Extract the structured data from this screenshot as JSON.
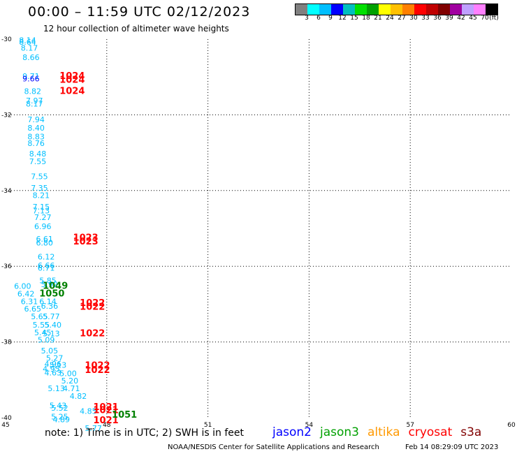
{
  "header": {
    "title": "00:00 – 11:59 UTC 02/12/2023",
    "subtitle": "12 hour collection of altimeter wave heights"
  },
  "colorbar": {
    "colors": [
      "#808080",
      "#00ffff",
      "#00bfff",
      "#0000ff",
      "#00bfbf",
      "#00e000",
      "#00a000",
      "#ffff00",
      "#ffc000",
      "#ff8000",
      "#ff0000",
      "#c00000",
      "#800000",
      "#a000a0",
      "#c0a0ff",
      "#ff80ff",
      "#000000"
    ],
    "labels": [
      "3",
      "6",
      "9",
      "12",
      "15",
      "18",
      "21",
      "24",
      "27",
      "30",
      "33",
      "36",
      "39",
      "42",
      "45",
      "70",
      "(ft)"
    ]
  },
  "axes": {
    "lon_min": 45,
    "lon_max": 60,
    "lat_min": -40,
    "lat_max": -30,
    "lon_ticks": [
      "45",
      "48",
      "51",
      "54",
      "57",
      "60"
    ],
    "lat_ticks": [
      "-30",
      "-32",
      "-34",
      "-36",
      "-38",
      "-40"
    ]
  },
  "chart_data": {
    "type": "scatter",
    "swh_labels": [
      {
        "lon": 45.4,
        "lat": -30.1,
        "text": "8.14",
        "color": "#00bfff"
      },
      {
        "lon": 45.4,
        "lat": -30.15,
        "text": "8.64",
        "color": "#00bfff"
      },
      {
        "lon": 45.45,
        "lat": -30.3,
        "text": "8.17",
        "color": "#00bfff"
      },
      {
        "lon": 45.5,
        "lat": -30.55,
        "text": "8.66",
        "color": "#00bfff"
      },
      {
        "lon": 45.5,
        "lat": -31.05,
        "text": "9.71",
        "color": "#00bfff"
      },
      {
        "lon": 45.5,
        "lat": -31.12,
        "text": "9.66",
        "color": "#0000ff"
      },
      {
        "lon": 45.55,
        "lat": -31.45,
        "text": "8.82",
        "color": "#00bfff"
      },
      {
        "lon": 45.6,
        "lat": -31.7,
        "text": "7.97",
        "color": "#00bfff"
      },
      {
        "lon": 45.6,
        "lat": -31.78,
        "text": "8.17",
        "color": "#00bfff"
      },
      {
        "lon": 45.65,
        "lat": -32.2,
        "text": "7.94",
        "color": "#00bfff"
      },
      {
        "lon": 45.65,
        "lat": -32.42,
        "text": "8.40",
        "color": "#00bfff"
      },
      {
        "lon": 45.65,
        "lat": -32.65,
        "text": "8.83",
        "color": "#00bfff"
      },
      {
        "lon": 45.65,
        "lat": -32.82,
        "text": "8.76",
        "color": "#00bfff"
      },
      {
        "lon": 45.7,
        "lat": -33.1,
        "text": "8.48",
        "color": "#00bfff"
      },
      {
        "lon": 45.7,
        "lat": -33.3,
        "text": "7.55",
        "color": "#00bfff"
      },
      {
        "lon": 45.75,
        "lat": -33.7,
        "text": "7.55",
        "color": "#00bfff"
      },
      {
        "lon": 45.75,
        "lat": -34.0,
        "text": "7.35",
        "color": "#00bfff"
      },
      {
        "lon": 45.8,
        "lat": -34.2,
        "text": "8.21",
        "color": "#00bfff"
      },
      {
        "lon": 45.8,
        "lat": -34.5,
        "text": "7.15",
        "color": "#00bfff"
      },
      {
        "lon": 45.8,
        "lat": -34.6,
        "text": "7.13",
        "color": "#00bfff"
      },
      {
        "lon": 45.85,
        "lat": -34.78,
        "text": "7.27",
        "color": "#00bfff"
      },
      {
        "lon": 45.85,
        "lat": -35.02,
        "text": "6.96",
        "color": "#00bfff"
      },
      {
        "lon": 45.9,
        "lat": -35.35,
        "text": "6.61",
        "color": "#00bfff"
      },
      {
        "lon": 45.9,
        "lat": -35.45,
        "text": "6.80",
        "color": "#00bfff"
      },
      {
        "lon": 45.95,
        "lat": -35.82,
        "text": "6.12",
        "color": "#00bfff"
      },
      {
        "lon": 45.95,
        "lat": -36.05,
        "text": "6.66",
        "color": "#00bfff"
      },
      {
        "lon": 45.95,
        "lat": -36.12,
        "text": "6.71",
        "color": "#00bfff"
      },
      {
        "lon": 46.0,
        "lat": -36.45,
        "text": "5.85",
        "color": "#00bfff"
      },
      {
        "lon": 46.05,
        "lat": -36.55,
        "text": "5.92",
        "color": "#00bfff"
      },
      {
        "lon": 45.25,
        "lat": -36.6,
        "text": "6.00",
        "color": "#00bfff"
      },
      {
        "lon": 45.35,
        "lat": -36.8,
        "text": "6.42",
        "color": "#00bfff"
      },
      {
        "lon": 45.45,
        "lat": -37.0,
        "text": "6.31",
        "color": "#00bfff"
      },
      {
        "lon": 45.55,
        "lat": -37.2,
        "text": "6.65",
        "color": "#00bfff"
      },
      {
        "lon": 46.0,
        "lat": -37.0,
        "text": "6.14",
        "color": "#00bfff"
      },
      {
        "lon": 46.05,
        "lat": -37.12,
        "text": "6.36",
        "color": "#00bfff"
      },
      {
        "lon": 46.1,
        "lat": -37.4,
        "text": "5.77",
        "color": "#00bfff"
      },
      {
        "lon": 45.75,
        "lat": -37.4,
        "text": "5.65",
        "color": "#00bfff"
      },
      {
        "lon": 45.8,
        "lat": -37.62,
        "text": "5.55",
        "color": "#00bfff"
      },
      {
        "lon": 46.15,
        "lat": -37.62,
        "text": "5.40",
        "color": "#00bfff"
      },
      {
        "lon": 45.85,
        "lat": -37.82,
        "text": "5.45",
        "color": "#00bfff"
      },
      {
        "lon": 46.1,
        "lat": -37.85,
        "text": "5.13",
        "color": "#00bfff"
      },
      {
        "lon": 45.95,
        "lat": -38.02,
        "text": "5.09",
        "color": "#00bfff"
      },
      {
        "lon": 46.05,
        "lat": -38.3,
        "text": "5.05",
        "color": "#00bfff"
      },
      {
        "lon": 46.2,
        "lat": -38.5,
        "text": "5.27",
        "color": "#00bfff"
      },
      {
        "lon": 46.15,
        "lat": -38.65,
        "text": "4.96",
        "color": "#00bfff"
      },
      {
        "lon": 46.3,
        "lat": -38.68,
        "text": "5.13",
        "color": "#00bfff"
      },
      {
        "lon": 46.1,
        "lat": -38.78,
        "text": "4.95",
        "color": "#00bfff"
      },
      {
        "lon": 46.15,
        "lat": -38.88,
        "text": "4.63",
        "color": "#00bfff"
      },
      {
        "lon": 46.6,
        "lat": -38.9,
        "text": "5.00",
        "color": "#00bfff"
      },
      {
        "lon": 46.65,
        "lat": -39.1,
        "text": "5.20",
        "color": "#00bfff"
      },
      {
        "lon": 46.25,
        "lat": -39.3,
        "text": "5.13",
        "color": "#00bfff"
      },
      {
        "lon": 46.7,
        "lat": -39.3,
        "text": "4.71",
        "color": "#00bfff"
      },
      {
        "lon": 46.9,
        "lat": -39.5,
        "text": "4.82",
        "color": "#00bfff"
      },
      {
        "lon": 46.3,
        "lat": -39.75,
        "text": "5.43",
        "color": "#00bfff"
      },
      {
        "lon": 46.35,
        "lat": -39.82,
        "text": "5.52",
        "color": "#00bfff"
      },
      {
        "lon": 47.2,
        "lat": -39.9,
        "text": "4.85",
        "color": "#00bfff"
      },
      {
        "lon": 46.35,
        "lat": -40.05,
        "text": "5.25",
        "color": "#00bfff"
      },
      {
        "lon": 46.4,
        "lat": -40.12,
        "text": "4.89",
        "color": "#00bfff"
      },
      {
        "lon": 47.35,
        "lat": -40.35,
        "text": "5.77",
        "color": "#00bfff"
      }
    ],
    "pressure_labels": [
      {
        "lon": 46.6,
        "lat": -31.05,
        "text": "1024",
        "color": "#ff0000"
      },
      {
        "lon": 46.6,
        "lat": -31.15,
        "text": "1024",
        "color": "#ff0000"
      },
      {
        "lon": 46.6,
        "lat": -31.45,
        "text": "1024",
        "color": "#ff0000"
      },
      {
        "lon": 47.0,
        "lat": -35.32,
        "text": "1023",
        "color": "#ff0000"
      },
      {
        "lon": 47.0,
        "lat": -35.42,
        "text": "1023",
        "color": "#ff0000"
      },
      {
        "lon": 46.1,
        "lat": -36.6,
        "text": "1049",
        "color": "#008000"
      },
      {
        "lon": 46.0,
        "lat": -36.8,
        "text": "1050",
        "color": "#008000"
      },
      {
        "lon": 47.2,
        "lat": -37.05,
        "text": "1022",
        "color": "#ff0000"
      },
      {
        "lon": 47.2,
        "lat": -37.15,
        "text": "1022",
        "color": "#ff0000"
      },
      {
        "lon": 47.2,
        "lat": -37.85,
        "text": "1022",
        "color": "#ff0000"
      },
      {
        "lon": 47.35,
        "lat": -38.7,
        "text": "1022",
        "color": "#ff0000"
      },
      {
        "lon": 47.35,
        "lat": -38.82,
        "text": "1022",
        "color": "#ff0000"
      },
      {
        "lon": 47.6,
        "lat": -39.8,
        "text": "1021",
        "color": "#ff0000"
      },
      {
        "lon": 47.6,
        "lat": -39.88,
        "text": "1021",
        "color": "#ff0000"
      },
      {
        "lon": 47.6,
        "lat": -40.15,
        "text": "1021",
        "color": "#ff0000"
      },
      {
        "lon": 48.15,
        "lat": -40.0,
        "text": "1051",
        "color": "#008000"
      }
    ]
  },
  "note": "note:  1) Time is in UTC;  2) SWH is in feet",
  "legend": [
    {
      "name": "jason2",
      "color": "#0000ff"
    },
    {
      "name": "jason3",
      "color": "#00a000"
    },
    {
      "name": "altika",
      "color": "#ff9900"
    },
    {
      "name": "cryosat",
      "color": "#ff0000"
    },
    {
      "name": "s3a",
      "color": "#800000"
    }
  ],
  "footer": {
    "credit": "NOAA/NESDIS Center for Satellite Applications and Research",
    "timestamp": "Feb 14 08:29:09 UTC 2023"
  }
}
